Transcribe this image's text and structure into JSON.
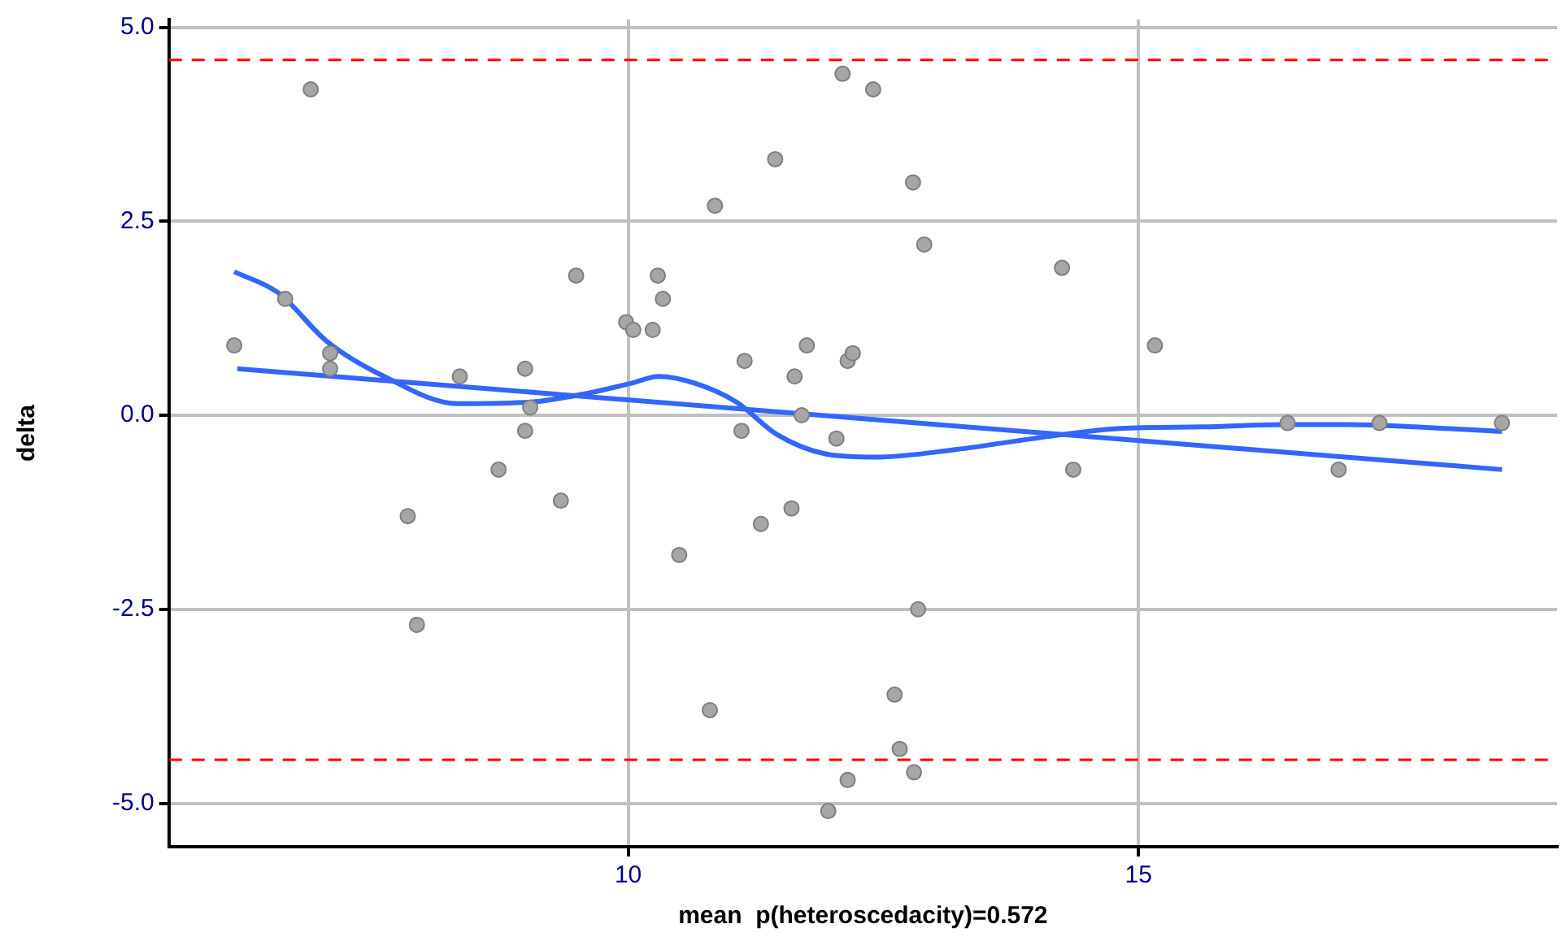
{
  "chart_data": {
    "type": "scatter",
    "xlabel": "mean  p(heteroscedacity)=0.572",
    "ylabel": "delta",
    "xlim": [
      5.5,
      19.1
    ],
    "ylim": [
      -5.56,
      5.1
    ],
    "xticks": [
      10,
      15
    ],
    "yticks": [
      {
        "value": -5,
        "label": "-5.0"
      },
      -2.5,
      {
        "value": 0,
        "label": "0.0"
      },
      2.5,
      {
        "value": 5,
        "label": "5.0"
      }
    ],
    "grid": true,
    "legend": false,
    "ref_lines": [
      {
        "axis": "y",
        "value": 4.58,
        "color": "#ff0000",
        "line_style": "dashed"
      },
      {
        "axis": "y",
        "value": -4.44,
        "color": "#ff0000",
        "line_style": "dashed"
      }
    ],
    "series": [
      {
        "type": "scatter",
        "color": "#a6a6a6",
        "marker": "circle",
        "x": [
          6.14,
          6.64,
          6.89,
          7.08,
          7.08,
          7.84,
          7.93,
          8.35,
          8.73,
          8.99,
          8.99,
          9.04,
          9.34,
          9.49,
          9.98,
          10.05,
          10.24,
          10.29,
          10.34,
          10.5,
          10.8,
          10.85,
          11.11,
          11.14,
          11.3,
          11.44,
          11.6,
          11.63,
          11.7,
          11.75,
          11.96,
          12.04,
          12.1,
          12.15,
          12.15,
          12.2,
          12.4,
          12.61,
          12.66,
          12.79,
          12.8,
          12.84,
          12.9,
          14.25,
          14.36,
          15.16,
          16.46,
          16.96,
          17.36,
          18.56
        ],
        "values": [
          0.9,
          1.5,
          4.2,
          0.8,
          0.6,
          -1.3,
          -2.7,
          0.5,
          -0.7,
          0.6,
          -0.2,
          0.1,
          -1.1,
          1.8,
          1.2,
          1.1,
          1.1,
          1.8,
          1.5,
          -1.8,
          -3.8,
          2.7,
          -0.2,
          0.7,
          -1.4,
          3.3,
          -1.2,
          0.5,
          0,
          0.9,
          -5.1,
          -0.3,
          4.4,
          0.7,
          -4.7,
          0.8,
          4.2,
          -3.6,
          -4.3,
          3,
          -4.6,
          -2.5,
          2.2,
          1.9,
          -0.7,
          0.9,
          -0.1,
          -0.7,
          -0.1,
          -0.1
        ]
      },
      {
        "type": "line",
        "color": "#3366ff",
        "marker": "none",
        "line_style": "solid",
        "x": [
          6.14,
          6.57,
          7.05,
          7.61,
          8.33,
          9.05,
          9.62,
          10.02,
          10.3,
          10.66,
          11.06,
          11.46,
          11.94,
          12.42,
          13.22,
          14.02,
          14.82,
          15.63,
          16.43,
          17.07,
          17.71,
          18.56
        ],
        "values": [
          1.85,
          1.58,
          0.95,
          0.5,
          0.15,
          0.17,
          0.29,
          0.41,
          0.5,
          0.41,
          0.17,
          -0.25,
          -0.5,
          -0.54,
          -0.44,
          -0.29,
          -0.17,
          -0.15,
          -0.12,
          -0.12,
          -0.15,
          -0.21
        ]
      },
      {
        "type": "line",
        "color": "#3366ff",
        "marker": "none",
        "line_style": "solid",
        "x": [
          6.17,
          18.56
        ],
        "values": [
          0.6,
          -0.7
        ]
      }
    ]
  }
}
